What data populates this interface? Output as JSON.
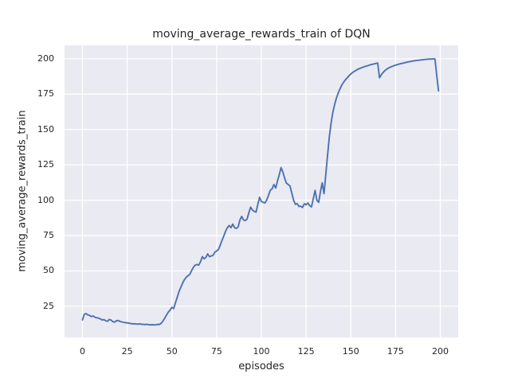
{
  "chart_data": {
    "type": "line",
    "title": "moving_average_rewards_train of DQN",
    "xlabel": "episodes",
    "ylabel": "moving_average_rewards_train",
    "xlim": [
      -10,
      210
    ],
    "ylim": [
      3,
      209.5
    ],
    "xticks": [
      0,
      25,
      50,
      75,
      100,
      125,
      150,
      175,
      200
    ],
    "yticks": [
      25,
      50,
      75,
      100,
      125,
      150,
      175,
      200
    ],
    "grid": true,
    "legend_position": "none",
    "line_color": "#4C72B0",
    "plot_bg_color": "#EAEAF2",
    "grid_color": "#FFFFFF",
    "text_color": "#262626",
    "series": [
      {
        "name": "moving_average_rewards_train",
        "x": [
          0,
          1,
          2,
          3,
          4,
          5,
          6,
          7,
          8,
          9,
          10,
          11,
          12,
          13,
          14,
          15,
          16,
          17,
          18,
          19,
          20,
          21,
          22,
          23,
          24,
          25,
          26,
          27,
          28,
          29,
          30,
          31,
          32,
          33,
          34,
          35,
          36,
          37,
          38,
          39,
          40,
          41,
          42,
          43,
          44,
          45,
          46,
          47,
          48,
          49,
          50,
          51,
          52,
          53,
          54,
          55,
          56,
          57,
          58,
          59,
          60,
          61,
          62,
          63,
          64,
          65,
          66,
          67,
          68,
          69,
          70,
          71,
          72,
          73,
          74,
          75,
          76,
          77,
          78,
          79,
          80,
          81,
          82,
          83,
          84,
          85,
          86,
          87,
          88,
          89,
          90,
          91,
          92,
          93,
          94,
          95,
          96,
          97,
          98,
          99,
          100,
          101,
          102,
          103,
          104,
          105,
          106,
          107,
          108,
          109,
          110,
          111,
          112,
          113,
          114,
          115,
          116,
          117,
          118,
          119,
          120,
          121,
          122,
          123,
          124,
          125,
          126,
          127,
          128,
          129,
          130,
          131,
          132,
          133,
          134,
          135,
          136,
          137,
          138,
          139,
          140,
          141,
          142,
          143,
          144,
          145,
          146,
          147,
          148,
          149,
          150,
          151,
          152,
          153,
          154,
          155,
          156,
          157,
          158,
          159,
          160,
          161,
          162,
          163,
          164,
          165,
          166,
          167,
          168,
          169,
          170,
          171,
          172,
          173,
          174,
          175,
          176,
          177,
          178,
          179,
          180,
          181,
          182,
          183,
          184,
          185,
          186,
          187,
          188,
          189,
          190,
          191,
          192,
          193,
          194,
          195,
          196,
          197,
          198,
          199
        ],
        "y": [
          15.4,
          19.3,
          19.9,
          19.0,
          18.6,
          17.7,
          18.2,
          17.3,
          16.9,
          16.7,
          16.1,
          15.3,
          15.6,
          14.8,
          14.4,
          15.7,
          15.2,
          14.2,
          13.8,
          14.8,
          15.0,
          14.3,
          14.0,
          13.7,
          13.4,
          13.3,
          13.1,
          12.8,
          12.6,
          12.7,
          12.5,
          12.4,
          12.6,
          12.3,
          12.2,
          12.1,
          12.3,
          12.0,
          11.9,
          12.0,
          11.9,
          11.9,
          12.3,
          12.1,
          13.0,
          14.6,
          16.6,
          18.9,
          20.9,
          22.4,
          24.2,
          23.4,
          27.6,
          31.5,
          35.5,
          38.5,
          41.5,
          43.8,
          45.6,
          46.6,
          47.6,
          50.2,
          52.6,
          54.1,
          54.6,
          54.1,
          56.6,
          60.1,
          58.6,
          59.6,
          62.1,
          60.1,
          60.6,
          61.1,
          63.2,
          64.2,
          65.2,
          68.2,
          71.6,
          74.6,
          78.1,
          80.6,
          82.1,
          80.6,
          83.1,
          80.6,
          80.1,
          81.1,
          86.1,
          88.6,
          86.1,
          85.6,
          86.6,
          91.1,
          95.1,
          93.1,
          92.1,
          91.6,
          97.1,
          102.1,
          99.1,
          98.6,
          98.1,
          100.1,
          103.6,
          107.1,
          108.1,
          111.1,
          108.6,
          113.6,
          118.1,
          123.1,
          120.1,
          115.6,
          112.1,
          111.1,
          110.1,
          105.1,
          100.0,
          97.1,
          97.6,
          95.6,
          95.8,
          94.9,
          97.5,
          96.8,
          98.1,
          96.2,
          95.3,
          101.0,
          107.0,
          100.0,
          98.5,
          106.0,
          112.3,
          104.7,
          118.0,
          132.0,
          145.0,
          155.0,
          162.5,
          168.0,
          172.5,
          176.0,
          179.0,
          181.5,
          183.5,
          185.2,
          186.6,
          188.0,
          189.3,
          190.3,
          191.1,
          191.9,
          192.6,
          193.2,
          193.7,
          194.2,
          194.6,
          195.0,
          195.4,
          195.8,
          196.1,
          196.4,
          196.7,
          197.0,
          186.6,
          188.6,
          190.3,
          191.6,
          192.6,
          193.4,
          194.1,
          194.6,
          195.1,
          195.5,
          195.9,
          196.3,
          196.6,
          196.9,
          197.2,
          197.5,
          197.8,
          198.0,
          198.3,
          198.5,
          198.7,
          198.9,
          199.0,
          199.2,
          199.3,
          199.5,
          199.6,
          199.7,
          199.8,
          199.8,
          199.9,
          199.9,
          188.0,
          177.3
        ]
      }
    ]
  }
}
